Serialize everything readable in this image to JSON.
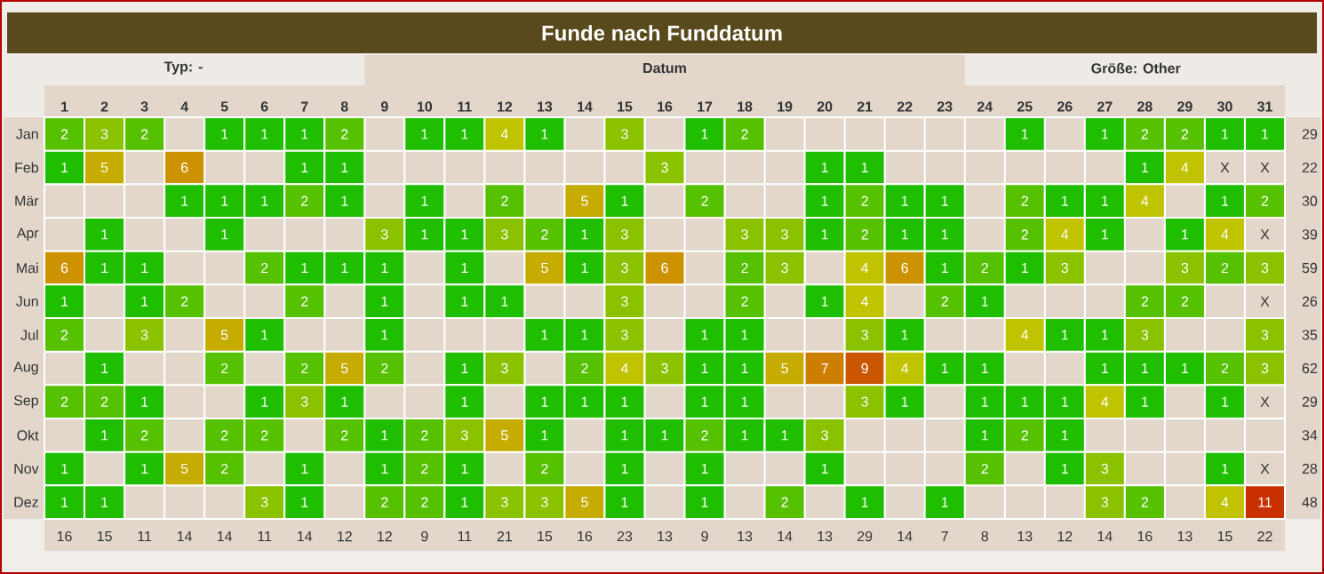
{
  "chart_data": {
    "type": "heatmap",
    "title": "Funde nach Funddatum",
    "categories": [
      "1",
      "2",
      "3",
      "4",
      "5",
      "6",
      "7",
      "8",
      "9",
      "10",
      "11",
      "12",
      "13",
      "14",
      "15",
      "16",
      "17",
      "18",
      "19",
      "20",
      "21",
      "22",
      "23",
      "24",
      "25",
      "26",
      "27",
      "28",
      "29",
      "30",
      "31"
    ],
    "y_categories": [
      "Jan",
      "Feb",
      "Mär",
      "Apr",
      "Mai",
      "Jun",
      "Jul",
      "Aug",
      "Sep",
      "Okt",
      "Nov",
      "Dez"
    ],
    "y2_categories": [
      "29",
      "22",
      "30",
      "39",
      "59",
      "26",
      "35",
      "62",
      "29",
      "34",
      "28",
      "48"
    ],
    "cells": [
      [
        2,
        3,
        2,
        null,
        1,
        1,
        1,
        2,
        null,
        1,
        1,
        4,
        1,
        null,
        3,
        null,
        1,
        2,
        null,
        null,
        null,
        null,
        null,
        null,
        1,
        null,
        1,
        2,
        2,
        1,
        1
      ],
      [
        1,
        5,
        null,
        6,
        null,
        null,
        1,
        1,
        null,
        null,
        null,
        null,
        null,
        null,
        null,
        3,
        null,
        null,
        null,
        1,
        1,
        null,
        null,
        null,
        null,
        null,
        null,
        1,
        4,
        null,
        null
      ],
      [
        null,
        null,
        null,
        1,
        1,
        1,
        2,
        1,
        null,
        1,
        null,
        2,
        null,
        5,
        1,
        null,
        2,
        null,
        null,
        1,
        2,
        1,
        1,
        null,
        2,
        1,
        1,
        4,
        null,
        1,
        2
      ],
      [
        null,
        1,
        null,
        null,
        1,
        null,
        null,
        null,
        3,
        1,
        1,
        3,
        2,
        1,
        3,
        null,
        null,
        3,
        3,
        1,
        2,
        1,
        1,
        null,
        2,
        4,
        1,
        null,
        1,
        4,
        null
      ],
      [
        6,
        1,
        1,
        null,
        null,
        2,
        1,
        1,
        1,
        null,
        1,
        null,
        5,
        1,
        3,
        6,
        null,
        2,
        3,
        null,
        4,
        6,
        1,
        2,
        1,
        3,
        null,
        null,
        3,
        2,
        3
      ],
      [
        1,
        null,
        1,
        2,
        null,
        null,
        2,
        null,
        1,
        null,
        1,
        1,
        null,
        null,
        3,
        null,
        null,
        2,
        null,
        1,
        4,
        null,
        2,
        1,
        null,
        null,
        null,
        2,
        2,
        null,
        null
      ],
      [
        2,
        null,
        3,
        null,
        5,
        1,
        null,
        null,
        1,
        null,
        null,
        null,
        1,
        1,
        3,
        null,
        1,
        1,
        null,
        null,
        3,
        1,
        null,
        null,
        4,
        1,
        1,
        3,
        null,
        null,
        3
      ],
      [
        null,
        1,
        null,
        null,
        2,
        null,
        2,
        5,
        2,
        null,
        1,
        3,
        null,
        2,
        4,
        3,
        1,
        1,
        5,
        7,
        9,
        4,
        1,
        1,
        null,
        null,
        1,
        1,
        1,
        2,
        3
      ],
      [
        2,
        2,
        1,
        null,
        null,
        1,
        3,
        1,
        null,
        null,
        1,
        null,
        1,
        1,
        1,
        null,
        1,
        1,
        null,
        null,
        3,
        1,
        null,
        1,
        1,
        1,
        4,
        1,
        null,
        1,
        null
      ],
      [
        null,
        1,
        2,
        null,
        2,
        2,
        null,
        2,
        1,
        2,
        3,
        5,
        1,
        null,
        1,
        1,
        2,
        1,
        1,
        3,
        null,
        null,
        null,
        1,
        2,
        1,
        null,
        null,
        null,
        null,
        null
      ],
      [
        1,
        null,
        1,
        5,
        2,
        null,
        1,
        null,
        1,
        2,
        1,
        null,
        2,
        null,
        1,
        null,
        1,
        null,
        null,
        1,
        null,
        null,
        null,
        2,
        null,
        1,
        3,
        null,
        null,
        1,
        null
      ],
      [
        1,
        1,
        null,
        null,
        null,
        3,
        1,
        null,
        2,
        2,
        1,
        3,
        3,
        5,
        1,
        null,
        1,
        null,
        2,
        null,
        1,
        null,
        1,
        null,
        null,
        null,
        3,
        2,
        null,
        4,
        11
      ]
    ],
    "cell_labels": [
      [
        "2",
        "3",
        "2",
        null,
        "1",
        "1",
        "1",
        "2",
        null,
        "1",
        "1",
        "4",
        "1",
        null,
        "3",
        null,
        "1",
        "2",
        null,
        null,
        null,
        null,
        null,
        null,
        "1",
        null,
        "1",
        "2",
        "2",
        "1",
        "1"
      ],
      [
        "1",
        "5",
        null,
        "6",
        null,
        null,
        "1",
        "1",
        null,
        null,
        null,
        null,
        null,
        null,
        null,
        "3",
        null,
        null,
        null,
        "1",
        "1",
        null,
        null,
        null,
        null,
        null,
        null,
        "1",
        "4",
        "X",
        "X"
      ],
      [
        null,
        null,
        null,
        "1",
        "1",
        "1",
        "2",
        "1",
        null,
        "1",
        null,
        "2",
        null,
        "5",
        "1",
        null,
        "2",
        null,
        null,
        "1",
        "2",
        "1",
        "1",
        null,
        "2",
        "1",
        "1",
        "4",
        null,
        "1",
        "2"
      ],
      [
        null,
        "1",
        null,
        null,
        "1",
        null,
        null,
        null,
        "3",
        "1",
        "1",
        "3",
        "2",
        "1",
        "3",
        null,
        null,
        "3",
        "3",
        "1",
        "2",
        "1",
        "1",
        null,
        "2",
        "4",
        "1",
        null,
        "1",
        "4",
        "X"
      ],
      [
        "6",
        "1",
        "1",
        null,
        null,
        "2",
        "1",
        "1",
        "1",
        null,
        "1",
        null,
        "5",
        "1",
        "3",
        "6",
        null,
        "2",
        "3",
        null,
        "4",
        "6",
        "1",
        "2",
        "1",
        "3",
        null,
        null,
        "3",
        "2",
        "3"
      ],
      [
        "1",
        null,
        "1",
        "2",
        null,
        null,
        "2",
        null,
        "1",
        null,
        "1",
        "1",
        null,
        null,
        "3",
        null,
        null,
        "2",
        null,
        "1",
        "4",
        null,
        "2",
        "1",
        null,
        null,
        null,
        "2",
        "2",
        null,
        "X"
      ],
      [
        "2",
        null,
        "3",
        null,
        "5",
        "1",
        null,
        null,
        "1",
        null,
        null,
        null,
        "1",
        "1",
        "3",
        null,
        "1",
        "1",
        null,
        null,
        "3",
        "1",
        null,
        null,
        "4",
        "1",
        "1",
        "3",
        null,
        null,
        "3"
      ],
      [
        null,
        "1",
        null,
        null,
        "2",
        null,
        "2",
        "5",
        "2",
        null,
        "1",
        "3",
        null,
        "2",
        "4",
        "3",
        "1",
        "1",
        "5",
        "7",
        "9",
        "4",
        "1",
        "1",
        null,
        null,
        "1",
        "1",
        "1",
        "2",
        "3"
      ],
      [
        "2",
        "2",
        "1",
        null,
        null,
        "1",
        "3",
        "1",
        null,
        null,
        "1",
        null,
        "1",
        "1",
        "1",
        null,
        "1",
        "1",
        null,
        null,
        "3",
        "1",
        null,
        "1",
        "1",
        "1",
        "4",
        "1",
        null,
        "1",
        "X"
      ],
      [
        null,
        "1",
        "2",
        null,
        "2",
        "2",
        null,
        "2",
        "1",
        "2",
        "3",
        "5",
        "1",
        null,
        "1",
        "1",
        "2",
        "1",
        "1",
        "3",
        null,
        null,
        null,
        "1",
        "2",
        "1",
        null,
        null,
        null,
        null,
        null
      ],
      [
        "1",
        null,
        "1",
        "5",
        "2",
        null,
        "1",
        null,
        "1",
        "2",
        "1",
        null,
        "2",
        null,
        "1",
        null,
        "1",
        null,
        null,
        "1",
        null,
        null,
        null,
        "2",
        null,
        "1",
        "3",
        null,
        null,
        "1",
        "X"
      ],
      [
        "1",
        "1",
        null,
        null,
        null,
        "3",
        "1",
        null,
        "2",
        "2",
        "1",
        "3",
        "3",
        "5",
        "1",
        null,
        "1",
        null,
        "2",
        null,
        "1",
        null,
        "1",
        null,
        null,
        null,
        "3",
        "2",
        null,
        "4",
        "11"
      ]
    ],
    "data_labels": true,
    "grid": true,
    "annotations": [
      "Typ: -",
      "Datum",
      "Größe: Other",
      "16",
      "15",
      "11",
      "14",
      "14",
      "11",
      "14",
      "12",
      "12",
      "9",
      "11",
      "21",
      "15",
      "16",
      "23",
      "13",
      "9",
      "13",
      "14",
      "13",
      "29",
      "14",
      "7",
      "8",
      "13",
      "12",
      "14",
      "16",
      "13",
      "15",
      "22"
    ]
  }
}
